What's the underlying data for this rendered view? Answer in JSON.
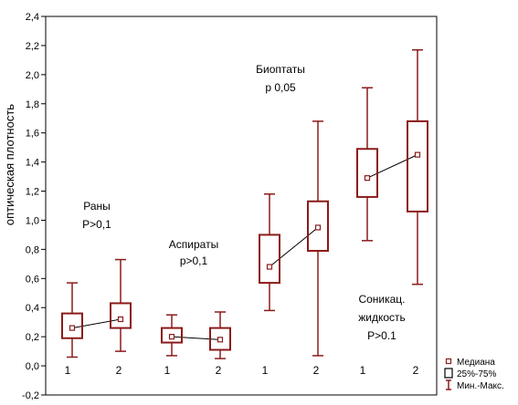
{
  "chart_data": {
    "type": "boxplot",
    "ylabel": "оптическая плотность",
    "ylim": [
      -0.2,
      2.4
    ],
    "yticks": [
      "-0,2",
      "0,0",
      "0,2",
      "0,4",
      "0,6",
      "0,8",
      "1,0",
      "1,2",
      "1,4",
      "1,6",
      "1,8",
      "2,0",
      "2,2",
      "2,4"
    ],
    "ytick_values": [
      -0.2,
      0.0,
      0.2,
      0.4,
      0.6,
      0.8,
      1.0,
      1.2,
      1.4,
      1.6,
      1.8,
      2.0,
      2.2,
      2.4
    ],
    "boxes": [
      {
        "label": "1",
        "min": 0.06,
        "q1": 0.19,
        "median": 0.26,
        "q3": 0.36,
        "max": 0.57
      },
      {
        "label": "2",
        "min": 0.1,
        "q1": 0.26,
        "median": 0.32,
        "q3": 0.43,
        "max": 0.73
      },
      {
        "label": "1",
        "min": 0.07,
        "q1": 0.16,
        "median": 0.2,
        "q3": 0.26,
        "max": 0.35
      },
      {
        "label": "2",
        "min": 0.05,
        "q1": 0.11,
        "median": 0.18,
        "q3": 0.26,
        "max": 0.37
      },
      {
        "label": "1",
        "min": 0.38,
        "q1": 0.57,
        "median": 0.68,
        "q3": 0.9,
        "max": 1.18
      },
      {
        "label": "2",
        "min": 0.07,
        "q1": 0.79,
        "median": 0.95,
        "q3": 1.13,
        "max": 1.68
      },
      {
        "label": "1",
        "min": 0.86,
        "q1": 1.16,
        "median": 1.29,
        "q3": 1.49,
        "max": 1.91
      },
      {
        "label": "2",
        "min": 0.56,
        "q1": 1.06,
        "median": 1.45,
        "q3": 1.68,
        "max": 2.17
      }
    ],
    "links": [
      [
        0,
        1
      ],
      [
        2,
        3
      ],
      [
        4,
        5
      ],
      [
        6,
        7
      ]
    ],
    "annotations": [
      {
        "lines": [
          "Раны",
          "P>0,1"
        ]
      },
      {
        "lines": [
          "Аспираты",
          "p>0,1"
        ]
      },
      {
        "lines": [
          "Биоптаты",
          "p   0,05"
        ]
      },
      {
        "lines": [
          "Соникац.",
          "жидкость",
          "P>0.1"
        ]
      }
    ],
    "legend": {
      "position": "bottom-right",
      "items": [
        "Медиана",
        "25%-75%",
        "Мин.-Макс."
      ]
    },
    "colors": {
      "box": "#8b1a1a",
      "link": "#000000"
    }
  }
}
